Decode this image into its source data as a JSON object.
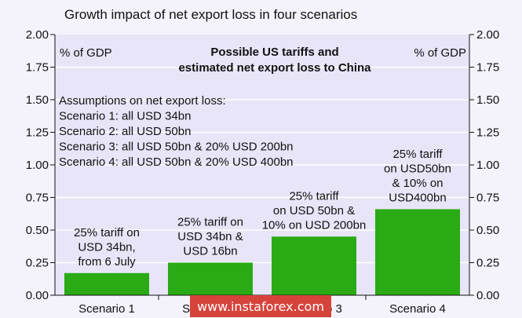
{
  "watermark": "www.instaforex.com",
  "colors": {
    "background": "#f4f2fb",
    "plot_background": "#e8e5f8",
    "bar": "#2aaa15",
    "text": "#111111",
    "grid": "#ffffff",
    "watermark": "#d6433b"
  },
  "chart_data": {
    "type": "bar",
    "title": "Growth impact of net export loss in four scenarios",
    "subtitle": [
      "Possible US tariffs and",
      "estimated net export loss to China"
    ],
    "ylabel_left": "% of GDP",
    "ylabel_right": "% of GDP",
    "ylim": [
      0,
      2.0
    ],
    "yticks": [
      "0.00",
      "0.25",
      "0.50",
      "0.75",
      "1.00",
      "1.25",
      "1.50",
      "1.75",
      "2.00"
    ],
    "grid": true,
    "categories": [
      "Scenario 1",
      "Scenario 2",
      "Scenario 3",
      "Scenario 4"
    ],
    "values": [
      0.17,
      0.25,
      0.45,
      0.66
    ],
    "bar_labels": [
      [
        "25% tariff on",
        "USD 34bn,",
        "from 6 July"
      ],
      [
        "25% tariff on",
        "USD 34bn &",
        "USD 16bn"
      ],
      [
        "25% tariff",
        "on USD 50bn &",
        "10% on USD 200bn"
      ],
      [
        "25% tariff",
        "on USD50bn",
        "& 10% on",
        "USD400bn"
      ]
    ],
    "annotation": [
      "Assumptions on net export loss:",
      "Scenario 1: all USD 34bn",
      "Scenario 2: all USD 50bn",
      "Scenario 3: all USD 50bn & 20% USD 200bn",
      "Scenario 4: all USD 50bn & 20% USD 400bn"
    ]
  }
}
